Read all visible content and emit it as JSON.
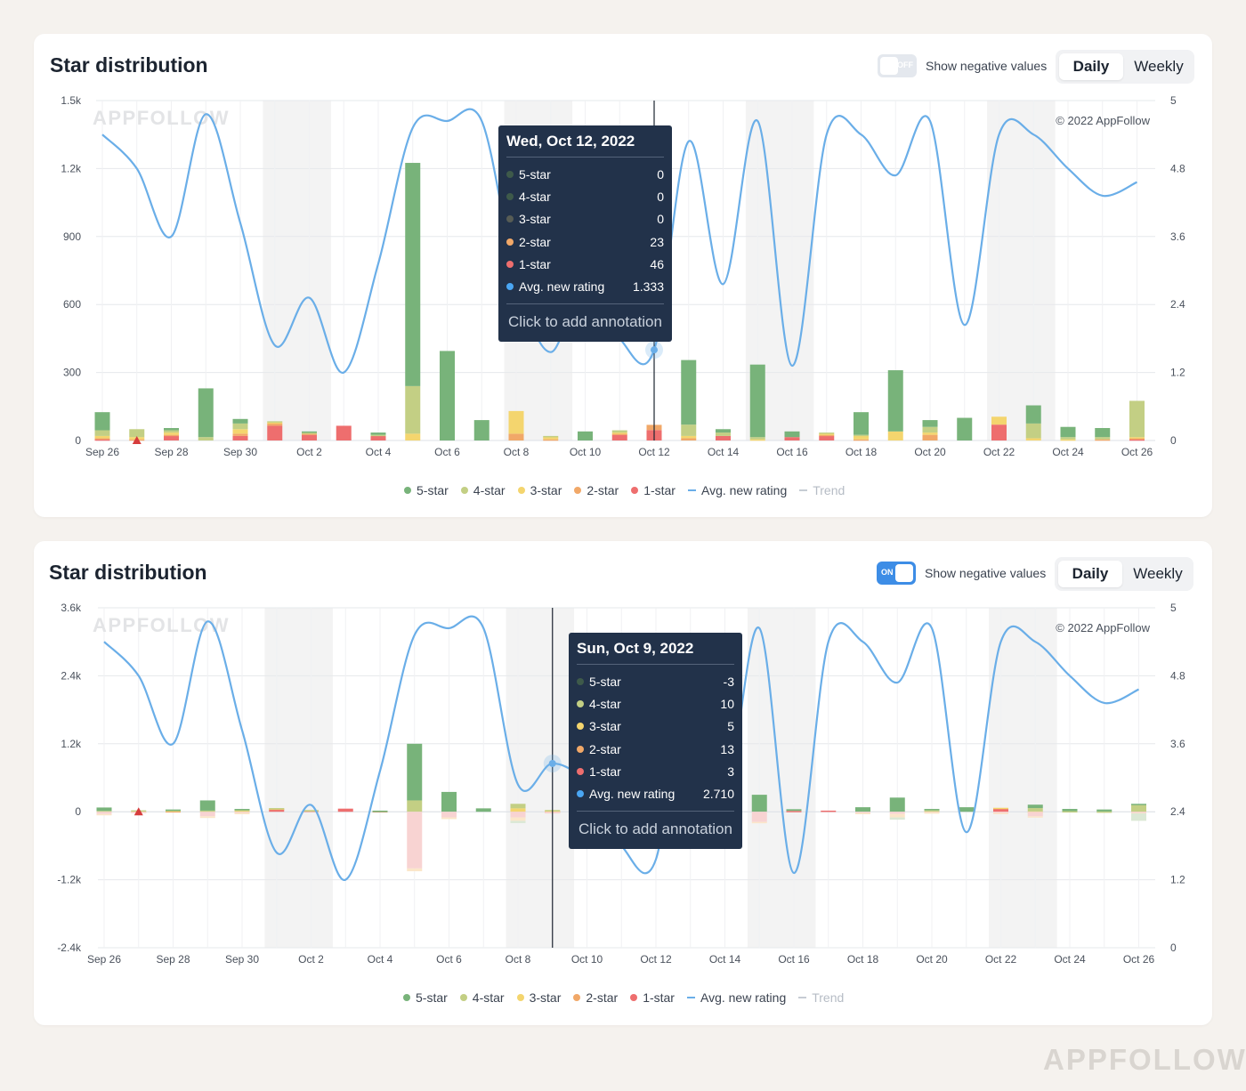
{
  "charts": [
    {
      "title": "Star distribution",
      "toggle": {
        "label": "Show negative values",
        "state": "OFF"
      },
      "view": {
        "daily_label": "Daily",
        "weekly_label": "Weekly"
      },
      "watermark": "APPFOLLOW",
      "copyright": "© 2022 AppFollow",
      "tooltip": {
        "date": "Wed, Oct 12, 2022",
        "rows": [
          {
            "label": "5-star",
            "value": "0",
            "color": "#3e5a4a"
          },
          {
            "label": "4-star",
            "value": "0",
            "color": "#3e5a4a"
          },
          {
            "label": "3-star",
            "value": "0",
            "color": "#575c55"
          },
          {
            "label": "2-star",
            "value": "23",
            "color": "#f1a868"
          },
          {
            "label": "1-star",
            "value": "46",
            "color": "#ee6e6e"
          },
          {
            "label": "Avg. new rating",
            "value": "1.333",
            "color": "#4aa6f3"
          }
        ],
        "action": "Click to add annotation"
      },
      "legend": [
        {
          "label": "5-star",
          "color": "#78b37a"
        },
        {
          "label": "4-star",
          "color": "#c3cf84"
        },
        {
          "label": "3-star",
          "color": "#f4d56e"
        },
        {
          "label": "2-star",
          "color": "#f1a868"
        },
        {
          "label": "1-star",
          "color": "#ee6e6e"
        },
        {
          "label": "Avg. new rating",
          "color": "#6aaee8",
          "line": true
        },
        {
          "label": "Trend",
          "color": "#c6ccd4",
          "line": true,
          "muted": true
        }
      ]
    },
    {
      "title": "Star distribution",
      "toggle": {
        "label": "Show negative values",
        "state": "ON"
      },
      "view": {
        "daily_label": "Daily",
        "weekly_label": "Weekly"
      },
      "watermark": "APPFOLLOW",
      "copyright": "© 2022 AppFollow",
      "tooltip": {
        "date": "Sun, Oct 9, 2022",
        "rows": [
          {
            "label": "5-star",
            "value": "-3",
            "color": "#3e5a4a"
          },
          {
            "label": "4-star",
            "value": "10",
            "color": "#c3cf84"
          },
          {
            "label": "3-star",
            "value": "5",
            "color": "#f4d56e"
          },
          {
            "label": "2-star",
            "value": "13",
            "color": "#f1a868"
          },
          {
            "label": "1-star",
            "value": "3",
            "color": "#ee6e6e"
          },
          {
            "label": "Avg. new rating",
            "value": "2.710",
            "color": "#4aa6f3"
          }
        ],
        "action": "Click to add annotation"
      },
      "legend": [
        {
          "label": "5-star",
          "color": "#78b37a"
        },
        {
          "label": "4-star",
          "color": "#c3cf84"
        },
        {
          "label": "3-star",
          "color": "#f4d56e"
        },
        {
          "label": "2-star",
          "color": "#f1a868"
        },
        {
          "label": "1-star",
          "color": "#ee6e6e"
        },
        {
          "label": "Avg. new rating",
          "color": "#6aaee8",
          "line": true
        },
        {
          "label": "Trend",
          "color": "#c6ccd4",
          "line": true,
          "muted": true
        }
      ]
    }
  ],
  "footer_watermark": "APPFOLLOW",
  "chart_data": [
    {
      "type": "bar",
      "title": "Star distribution",
      "stacked": true,
      "categories": [
        "Sep 26",
        "Sep 27",
        "Sep 28",
        "Sep 29",
        "Sep 30",
        "Oct 1",
        "Oct 2",
        "Oct 3",
        "Oct 4",
        "Oct 5",
        "Oct 6",
        "Oct 7",
        "Oct 8",
        "Oct 9",
        "Oct 10",
        "Oct 11",
        "Oct 12",
        "Oct 13",
        "Oct 14",
        "Oct 15",
        "Oct 16",
        "Oct 17",
        "Oct 18",
        "Oct 19",
        "Oct 20",
        "Oct 21",
        "Oct 22",
        "Oct 23",
        "Oct 24",
        "Oct 25",
        "Oct 26"
      ],
      "x_ticks": [
        "Sep 26",
        "Sep 28",
        "Sep 30",
        "Oct 2",
        "Oct 4",
        "Oct 6",
        "Oct 8",
        "Oct 10",
        "Oct 12",
        "Oct 14",
        "Oct 16",
        "Oct 18",
        "Oct 20",
        "Oct 22",
        "Oct 24",
        "Oct 26"
      ],
      "y_left_ticks": [
        "0",
        "300",
        "600",
        "900",
        "1.2k",
        "1.5k"
      ],
      "y_left_lim": [
        0,
        1500
      ],
      "y_right_ticks": [
        "0",
        "1.2",
        "2.4",
        "3.6",
        "4.8",
        "5"
      ],
      "series": [
        {
          "name": "5-star",
          "color": "#78b37a",
          "values": [
            80,
            0,
            10,
            215,
            20,
            0,
            5,
            0,
            10,
            985,
            395,
            90,
            0,
            0,
            40,
            0,
            0,
            285,
            15,
            320,
            25,
            0,
            100,
            270,
            30,
            100,
            0,
            80,
            45,
            40,
            0
          ]
        },
        {
          "name": "4-star",
          "color": "#c3cf84",
          "values": [
            25,
            35,
            10,
            15,
            25,
            5,
            5,
            0,
            5,
            210,
            0,
            0,
            0,
            5,
            0,
            10,
            0,
            50,
            15,
            10,
            0,
            5,
            5,
            0,
            25,
            0,
            0,
            65,
            10,
            10,
            160
          ]
        },
        {
          "name": "3-star",
          "color": "#f4d56e",
          "values": [
            10,
            10,
            10,
            0,
            20,
            5,
            0,
            0,
            0,
            30,
            0,
            0,
            100,
            10,
            0,
            5,
            0,
            10,
            0,
            5,
            0,
            5,
            15,
            40,
            10,
            0,
            35,
            10,
            5,
            0,
            5
          ]
        },
        {
          "name": "2-star",
          "color": "#f1a868",
          "values": [
            5,
            5,
            5,
            0,
            10,
            10,
            5,
            0,
            0,
            0,
            0,
            0,
            30,
            5,
            0,
            5,
            23,
            10,
            0,
            0,
            0,
            5,
            5,
            0,
            25,
            0,
            0,
            0,
            0,
            5,
            5
          ]
        },
        {
          "name": "1-star",
          "color": "#ee6e6e",
          "values": [
            5,
            0,
            20,
            0,
            20,
            65,
            25,
            65,
            20,
            0,
            0,
            0,
            0,
            0,
            0,
            25,
            46,
            0,
            20,
            0,
            15,
            20,
            0,
            0,
            0,
            0,
            70,
            0,
            0,
            0,
            5
          ]
        }
      ],
      "line_series": {
        "name": "Avg. new rating",
        "axis": "right",
        "color": "#6aaee8",
        "values": [
          4.5,
          4.0,
          3.0,
          4.8,
          3.2,
          1.4,
          2.1,
          1.0,
          2.6,
          4.6,
          4.7,
          4.7,
          2.4,
          1.3,
          2.4,
          1.5,
          1.333,
          4.4,
          2.3,
          4.7,
          1.1,
          4.5,
          4.5,
          3.9,
          4.7,
          1.7,
          4.5,
          4.5,
          4.0,
          3.6,
          3.8
        ]
      },
      "annotation_marker_at": "Sep 27",
      "weekends_shaded": [
        "Oct 1",
        "Oct 2",
        "Oct 8",
        "Oct 9",
        "Oct 15",
        "Oct 16",
        "Oct 22",
        "Oct 23"
      ],
      "cursor_at": "Oct 12"
    },
    {
      "type": "bar",
      "title": "Star distribution",
      "stacked": true,
      "categories": [
        "Sep 26",
        "Sep 27",
        "Sep 28",
        "Sep 29",
        "Sep 30",
        "Oct 1",
        "Oct 2",
        "Oct 3",
        "Oct 4",
        "Oct 5",
        "Oct 6",
        "Oct 7",
        "Oct 8",
        "Oct 9",
        "Oct 10",
        "Oct 11",
        "Oct 12",
        "Oct 13",
        "Oct 14",
        "Oct 15",
        "Oct 16",
        "Oct 17",
        "Oct 18",
        "Oct 19",
        "Oct 20",
        "Oct 21",
        "Oct 22",
        "Oct 23",
        "Oct 24",
        "Oct 25",
        "Oct 26"
      ],
      "x_ticks": [
        "Sep 26",
        "Sep 28",
        "Sep 30",
        "Oct 2",
        "Oct 4",
        "Oct 6",
        "Oct 8",
        "Oct 10",
        "Oct 12",
        "Oct 14",
        "Oct 16",
        "Oct 18",
        "Oct 20",
        "Oct 22",
        "Oct 24",
        "Oct 26"
      ],
      "y_left_ticks": [
        "-2.4k",
        "-1.2k",
        "0",
        "1.2k",
        "2.4k",
        "3.6k"
      ],
      "y_left_lim": [
        -2400,
        3600
      ],
      "y_right_ticks": [
        "0",
        "1.2",
        "2.4",
        "3.6",
        "4.8",
        "5"
      ],
      "series": [
        {
          "name": "5-star",
          "color": "#78b37a",
          "values": [
            60,
            0,
            10,
            180,
            15,
            0,
            0,
            0,
            5,
            1000,
            350,
            60,
            0,
            -3,
            0,
            0,
            0,
            0,
            0,
            300,
            30,
            0,
            80,
            250,
            25,
            80,
            0,
            60,
            40,
            35,
            20
          ]
        },
        {
          "name": "4-star",
          "color": "#c3cf84",
          "values": [
            10,
            20,
            10,
            20,
            20,
            5,
            5,
            0,
            5,
            200,
            0,
            0,
            80,
            10,
            0,
            0,
            0,
            0,
            0,
            0,
            0,
            0,
            0,
            0,
            20,
            0,
            0,
            60,
            10,
            5,
            120
          ]
        },
        {
          "name": "3-star",
          "color": "#f4d56e",
          "values": [
            5,
            5,
            5,
            0,
            10,
            5,
            0,
            0,
            0,
            0,
            0,
            0,
            60,
            5,
            0,
            0,
            0,
            0,
            0,
            0,
            0,
            0,
            0,
            0,
            5,
            0,
            10,
            5,
            0,
            0,
            0
          ]
        },
        {
          "name": "2-star",
          "color": "#f1a868",
          "values": [
            0,
            0,
            5,
            0,
            5,
            10,
            5,
            0,
            0,
            0,
            0,
            0,
            0,
            13,
            0,
            0,
            0,
            0,
            0,
            0,
            0,
            0,
            0,
            0,
            0,
            0,
            0,
            0,
            0,
            0,
            0
          ]
        },
        {
          "name": "1-star",
          "color": "#ee6e6e",
          "values": [
            0,
            0,
            10,
            0,
            0,
            45,
            20,
            55,
            10,
            0,
            0,
            0,
            0,
            3,
            0,
            0,
            0,
            0,
            0,
            0,
            15,
            20,
            0,
            0,
            0,
            0,
            60,
            0,
            0,
            0,
            0
          ]
        }
      ],
      "negative_series": [
        {
          "name": "1-star",
          "color": "#f8d3d2",
          "values": [
            -40,
            -10,
            0,
            -80,
            -20,
            0,
            0,
            0,
            0,
            -1000,
            -100,
            0,
            -100,
            -30,
            0,
            0,
            0,
            0,
            0,
            -180,
            0,
            0,
            -20,
            -40,
            -10,
            0,
            -20,
            -80,
            0,
            0,
            -20
          ]
        },
        {
          "name": "2-star",
          "color": "#fbe6c9",
          "values": [
            -20,
            0,
            0,
            -30,
            -10,
            0,
            0,
            0,
            0,
            -50,
            -30,
            0,
            -60,
            0,
            0,
            0,
            0,
            0,
            0,
            -20,
            0,
            0,
            -10,
            -60,
            -20,
            0,
            -5,
            -10,
            0,
            0,
            -10
          ]
        },
        {
          "name": "3-star",
          "color": "#dbe8d5",
          "values": [
            0,
            0,
            0,
            0,
            0,
            0,
            0,
            0,
            0,
            0,
            0,
            0,
            -40,
            0,
            0,
            0,
            0,
            0,
            0,
            0,
            0,
            0,
            0,
            -40,
            0,
            0,
            0,
            0,
            0,
            0,
            -130
          ]
        }
      ],
      "line_series": {
        "name": "Avg. new rating",
        "axis": "right",
        "color": "#6aaee8",
        "values": [
          4.5,
          4.0,
          3.0,
          4.8,
          3.2,
          1.4,
          2.1,
          1.0,
          2.6,
          4.6,
          4.7,
          4.7,
          2.4,
          2.71,
          2.4,
          1.5,
          1.3,
          4.4,
          2.3,
          4.7,
          1.1,
          4.5,
          4.5,
          3.9,
          4.7,
          1.7,
          4.5,
          4.5,
          4.0,
          3.6,
          3.8
        ]
      },
      "annotation_marker_at": "Sep 27",
      "weekends_shaded": [
        "Oct 1",
        "Oct 2",
        "Oct 8",
        "Oct 9",
        "Oct 15",
        "Oct 16",
        "Oct 22",
        "Oct 23"
      ],
      "cursor_at": "Oct 9"
    }
  ]
}
